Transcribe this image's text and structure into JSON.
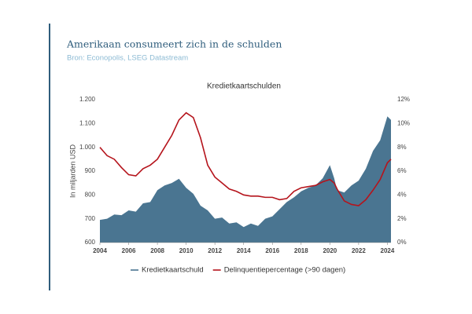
{
  "chart_data": {
    "type": "area-line",
    "title": "Amerikaan consumeert zich in de schulden",
    "subtitle": "Bron: Econopolis, LSEG Datastream",
    "chart_title": "Kredietkaartschulden",
    "y_label": "In miljarden USD",
    "x": [
      2004,
      2004.5,
      2005,
      2005.5,
      2006,
      2006.5,
      2007,
      2007.5,
      2008,
      2008.5,
      2009,
      2009.5,
      2010,
      2010.5,
      2011,
      2011.5,
      2012,
      2012.5,
      2013,
      2013.5,
      2014,
      2014.5,
      2015,
      2015.5,
      2016,
      2016.5,
      2017,
      2017.5,
      2018,
      2018.5,
      2019,
      2019.5,
      2020,
      2020.3,
      2020.5,
      2021,
      2021.5,
      2022,
      2022.5,
      2023,
      2023.5,
      2024,
      2024.25
    ],
    "xlim": [
      2004,
      2024.25
    ],
    "xticks": [
      2004,
      2006,
      2008,
      2010,
      2012,
      2014,
      2016,
      2018,
      2020,
      2022,
      2024
    ],
    "ylim": [
      600,
      1200
    ],
    "yticks": [
      600,
      700,
      800,
      900,
      {
        "value": 1000,
        "label": "1.000"
      },
      {
        "value": 1100,
        "label": "1.100"
      },
      {
        "value": 1200,
        "label": "1.200"
      }
    ],
    "y2lim": [
      0,
      12
    ],
    "y2ticks": [
      {
        "value": 0,
        "label": "0%"
      },
      {
        "value": 2,
        "label": "2%"
      },
      {
        "value": 4,
        "label": "4%"
      },
      {
        "value": 6,
        "label": "6%"
      },
      {
        "value": 8,
        "label": "8%"
      },
      {
        "value": 10,
        "label": "10%"
      },
      {
        "value": 12,
        "label": "12%"
      }
    ],
    "series": [
      {
        "name": "Kredietkaartschuld",
        "color": "#4a7591",
        "kind": "area",
        "values": [
          695,
          700,
          718,
          715,
          735,
          730,
          765,
          770,
          820,
          840,
          850,
          868,
          830,
          805,
          755,
          735,
          700,
          705,
          680,
          685,
          665,
          680,
          670,
          700,
          710,
          740,
          770,
          790,
          815,
          830,
          840,
          870,
          925,
          870,
          820,
          810,
          840,
          860,
          910,
          985,
          1030,
          1130,
          1115
        ]
      },
      {
        "name": "Delinquentiepercentage (>90 dagen)",
        "color": "#b5141c",
        "kind": "line",
        "axis": "y2",
        "values": [
          8.0,
          7.3,
          7.0,
          6.3,
          5.7,
          5.6,
          6.2,
          6.5,
          7.0,
          8.0,
          9.0,
          10.3,
          10.9,
          10.5,
          8.8,
          6.5,
          5.5,
          5.0,
          4.5,
          4.3,
          4.0,
          3.9,
          3.9,
          3.8,
          3.8,
          3.6,
          3.7,
          4.3,
          4.6,
          4.7,
          4.8,
          5.1,
          5.3,
          5.0,
          4.5,
          3.5,
          3.2,
          3.1,
          3.6,
          4.4,
          5.3,
          6.7,
          7.0
        ]
      }
    ]
  }
}
